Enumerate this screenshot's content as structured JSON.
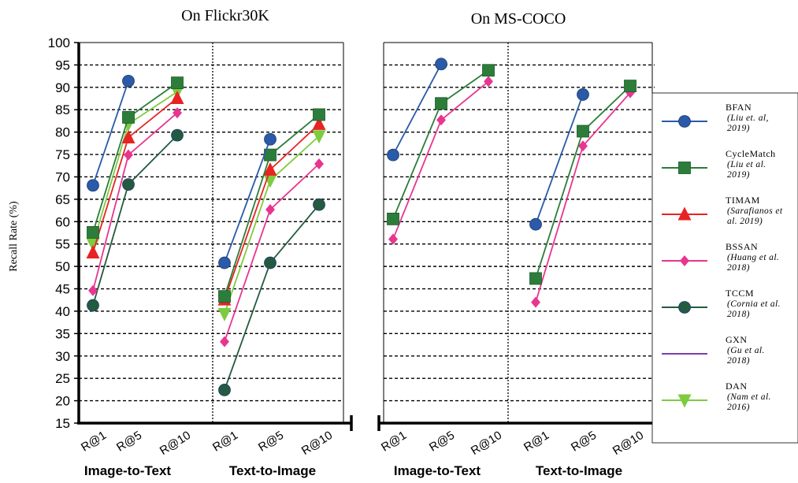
{
  "titles": {
    "left": "On Flickr30K",
    "right": "On  MS-COCO"
  },
  "y_axis": {
    "label": "Recall Rate (%)",
    "ticks": [
      "15",
      "20",
      "25",
      "30",
      "35",
      "40",
      "45",
      "50",
      "55",
      "60",
      "65",
      "70",
      "75",
      "80",
      "85",
      "90",
      "95",
      "100"
    ]
  },
  "x_ticks": [
    "R@1",
    "R@5",
    "R@10"
  ],
  "groups": [
    "Image-to-Text",
    "Text-to-Image",
    "Image-to-Text",
    "Text-to-Image"
  ],
  "legend": [
    {
      "key": "bfan",
      "name": "BFAN",
      "cite": [
        "(Liu et. al,",
        "2019)"
      ]
    },
    {
      "key": "cyclematch",
      "name": "CycleMatch",
      "cite": [
        "(Liu et al.",
        "2019)"
      ]
    },
    {
      "key": "timam",
      "name": "TIMAM",
      "cite": [
        "(Sarafianos et",
        "al. 2019)"
      ]
    },
    {
      "key": "bssan",
      "name": "BSSAN",
      "cite": [
        "(Huang et al.",
        "2018)"
      ]
    },
    {
      "key": "tccm",
      "name": "TCCM",
      "cite": [
        "(Cornia et al.",
        "2018)"
      ]
    },
    {
      "key": "gxn",
      "name": "GXN",
      "cite": [
        "(Gu et al.",
        "2018)"
      ]
    },
    {
      "key": "dan",
      "name": "DAN",
      "cite": [
        "(Nam et al.",
        "2016)"
      ]
    }
  ],
  "chart_data": {
    "type": "line",
    "ylabel": "Recall Rate (%)",
    "ylim": [
      15,
      100
    ],
    "categories": [
      "R@1",
      "R@5",
      "R@10"
    ],
    "grid": "dashed horizontal",
    "legend_position": "right",
    "panels": [
      {
        "dataset": "On Flickr30K",
        "group": "Image-to-Text",
        "series": [
          {
            "key": "bfan",
            "values": [
              68.1,
              91.4,
              null
            ]
          },
          {
            "key": "cyclematch",
            "values": [
              57.6,
              83.3,
              91.0
            ]
          },
          {
            "key": "timam",
            "values": [
              53.1,
              78.8,
              87.6
            ]
          },
          {
            "key": "bssan",
            "values": [
              44.6,
              74.9,
              84.3
            ]
          },
          {
            "key": "tccm",
            "values": [
              41.3,
              68.3,
              79.3
            ]
          },
          {
            "key": "dan",
            "values": [
              55.0,
              81.8,
              89.0
            ]
          }
        ]
      },
      {
        "dataset": "On Flickr30K",
        "group": "Text-to-Image",
        "series": [
          {
            "key": "bfan",
            "values": [
              50.8,
              78.4,
              null
            ]
          },
          {
            "key": "cyclematch",
            "values": [
              43.3,
              74.9,
              83.9
            ]
          },
          {
            "key": "timam",
            "values": [
              42.6,
              71.6,
              81.8
            ]
          },
          {
            "key": "bssan",
            "values": [
              33.2,
              62.7,
              72.9
            ]
          },
          {
            "key": "tccm",
            "values": [
              22.4,
              50.8,
              63.8
            ]
          },
          {
            "key": "dan",
            "values": [
              39.4,
              69.2,
              79.1
            ]
          }
        ]
      },
      {
        "dataset": "On  MS-COCO",
        "group": "Image-to-Text",
        "series": [
          {
            "key": "bfan",
            "values": [
              74.9,
              95.2,
              null
            ]
          },
          {
            "key": "cyclematch",
            "values": [
              60.6,
              86.4,
              93.8
            ]
          },
          {
            "key": "bssan",
            "values": [
              56.1,
              82.7,
              91.3
            ]
          }
        ]
      },
      {
        "dataset": "On  MS-COCO",
        "group": "Text-to-Image",
        "series": [
          {
            "key": "bfan",
            "values": [
              59.4,
              88.4,
              null
            ]
          },
          {
            "key": "cyclematch",
            "values": [
              47.3,
              80.2,
              90.3
            ]
          },
          {
            "key": "bssan",
            "values": [
              42.0,
              76.9,
              88.8
            ]
          }
        ]
      }
    ]
  },
  "series_styles": {
    "bfan": {
      "color": "#2a5aa8",
      "marker": "circle"
    },
    "cyclematch": {
      "color": "#2c7d3a",
      "marker": "square"
    },
    "timam": {
      "color": "#e82323",
      "marker": "triangle-up"
    },
    "bssan": {
      "color": "#e8358f",
      "marker": "diamond"
    },
    "tccm": {
      "color": "#245a3f",
      "marker": "circle"
    },
    "gxn": {
      "color": "#7a3fb0",
      "marker": "none"
    },
    "dan": {
      "color": "#7ecb3f",
      "marker": "triangle-down"
    }
  }
}
